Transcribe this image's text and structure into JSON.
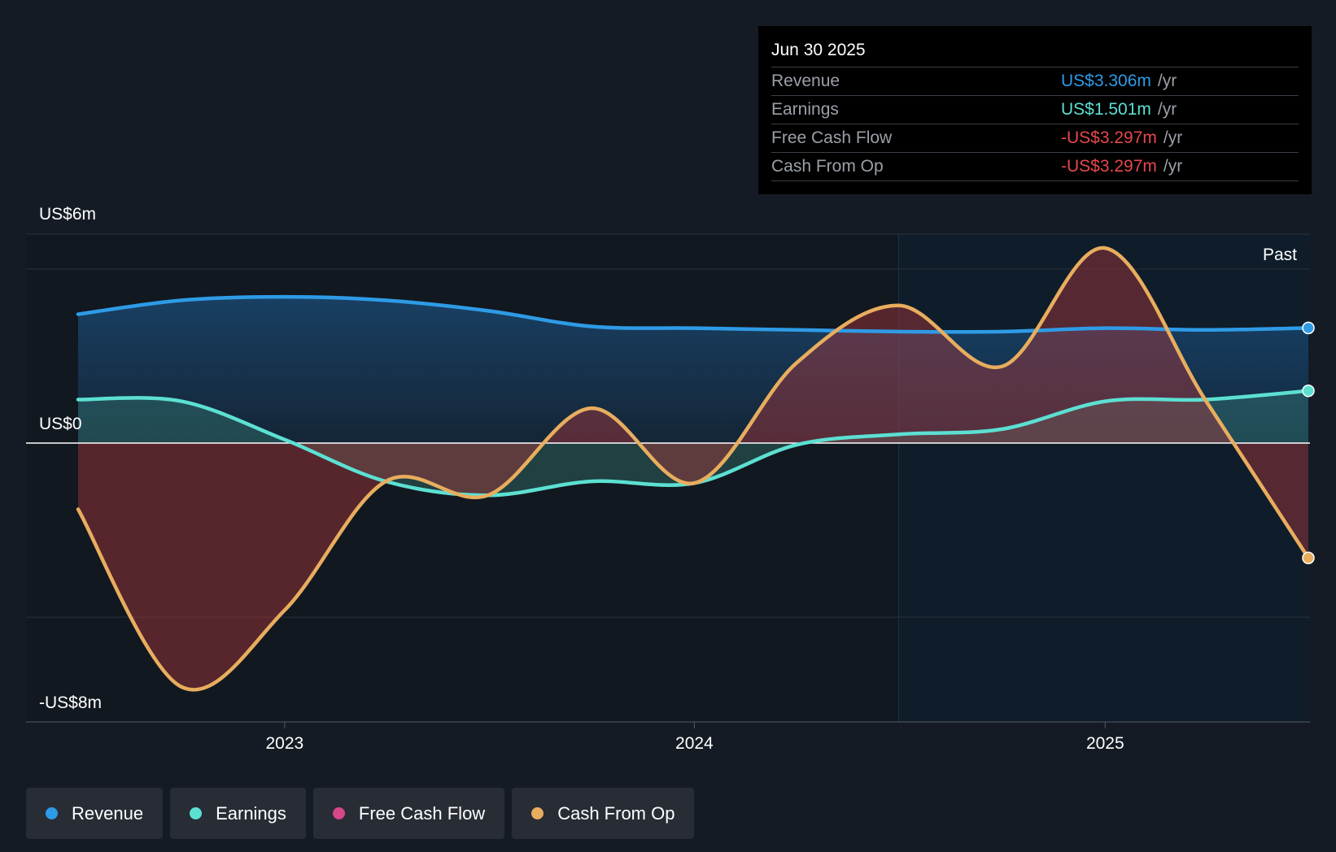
{
  "tooltip": {
    "date": "Jun 30 2025",
    "rows": [
      {
        "label": "Revenue",
        "value": "US$3.306m",
        "unit": "/yr",
        "color": "#2e9be6"
      },
      {
        "label": "Earnings",
        "value": "US$1.501m",
        "unit": "/yr",
        "color": "#5ce0d2"
      },
      {
        "label": "Free Cash Flow",
        "value": "-US$3.297m",
        "unit": "/yr",
        "color": "#e5484d"
      },
      {
        "label": "Cash From Op",
        "value": "-US$3.297m",
        "unit": "/yr",
        "color": "#e5484d"
      }
    ]
  },
  "past_label": "Past",
  "legend": [
    {
      "label": "Revenue",
      "color": "#2e9be6"
    },
    {
      "label": "Earnings",
      "color": "#5ce0d2"
    },
    {
      "label": "Free Cash Flow",
      "color": "#d6478a"
    },
    {
      "label": "Cash From Op",
      "color": "#e8ad5e"
    }
  ],
  "chart_data": {
    "type": "area",
    "x_ticks": [
      "2023",
      "2024",
      "2025"
    ],
    "y_labels": {
      "top": "US$6m",
      "zero": "US$0",
      "bottom": "-US$8m"
    },
    "ylim": [
      -8,
      6
    ],
    "x_range": [
      "2022-06-30",
      "2025-06-30"
    ],
    "grid": true,
    "legend_position": "bottom-left",
    "series": [
      {
        "name": "Revenue",
        "color": "#2e9be6",
        "points": [
          [
            "2022-06-30",
            3.7
          ],
          [
            "2022-09-30",
            4.1
          ],
          [
            "2022-12-31",
            4.2
          ],
          [
            "2023-03-31",
            4.1
          ],
          [
            "2023-06-30",
            3.8
          ],
          [
            "2023-09-30",
            3.35
          ],
          [
            "2023-12-31",
            3.3
          ],
          [
            "2024-03-31",
            3.25
          ],
          [
            "2024-06-30",
            3.2
          ],
          [
            "2024-09-30",
            3.2
          ],
          [
            "2024-12-31",
            3.3
          ],
          [
            "2025-03-31",
            3.25
          ],
          [
            "2025-06-30",
            3.306
          ]
        ]
      },
      {
        "name": "Earnings",
        "color": "#5ce0d2",
        "points": [
          [
            "2022-06-30",
            1.25
          ],
          [
            "2022-09-30",
            1.2
          ],
          [
            "2022-12-31",
            0.1
          ],
          [
            "2023-03-31",
            -1.1
          ],
          [
            "2023-06-30",
            -1.5
          ],
          [
            "2023-09-30",
            -1.1
          ],
          [
            "2023-12-31",
            -1.15
          ],
          [
            "2024-03-31",
            -0.05
          ],
          [
            "2024-06-30",
            0.25
          ],
          [
            "2024-09-30",
            0.4
          ],
          [
            "2024-12-31",
            1.2
          ],
          [
            "2025-03-31",
            1.25
          ],
          [
            "2025-06-30",
            1.501
          ]
        ]
      },
      {
        "name": "Free Cash Flow",
        "color": "#d6478a",
        "points": [
          [
            "2022-06-30",
            -1.9
          ],
          [
            "2022-09-30",
            -7.0
          ],
          [
            "2022-12-31",
            -4.8
          ],
          [
            "2023-03-31",
            -1.1
          ],
          [
            "2023-06-30",
            -1.5
          ],
          [
            "2023-09-30",
            1.0
          ],
          [
            "2023-12-31",
            -1.15
          ],
          [
            "2024-03-31",
            2.3
          ],
          [
            "2024-06-30",
            3.95
          ],
          [
            "2024-09-30",
            2.2
          ],
          [
            "2024-12-31",
            5.6
          ],
          [
            "2025-03-31",
            1.2
          ],
          [
            "2025-06-30",
            -3.297
          ]
        ]
      },
      {
        "name": "Cash From Op",
        "color": "#e8ad5e",
        "points": [
          [
            "2022-06-30",
            -1.9
          ],
          [
            "2022-09-30",
            -7.0
          ],
          [
            "2022-12-31",
            -4.8
          ],
          [
            "2023-03-31",
            -1.1
          ],
          [
            "2023-06-30",
            -1.5
          ],
          [
            "2023-09-30",
            1.0
          ],
          [
            "2023-12-31",
            -1.15
          ],
          [
            "2024-03-31",
            2.3
          ],
          [
            "2024-06-30",
            3.95
          ],
          [
            "2024-09-30",
            2.2
          ],
          [
            "2024-12-31",
            5.6
          ],
          [
            "2025-03-31",
            1.2
          ],
          [
            "2025-06-30",
            -3.297
          ]
        ]
      }
    ],
    "past_region_start": "2024-06-30"
  }
}
